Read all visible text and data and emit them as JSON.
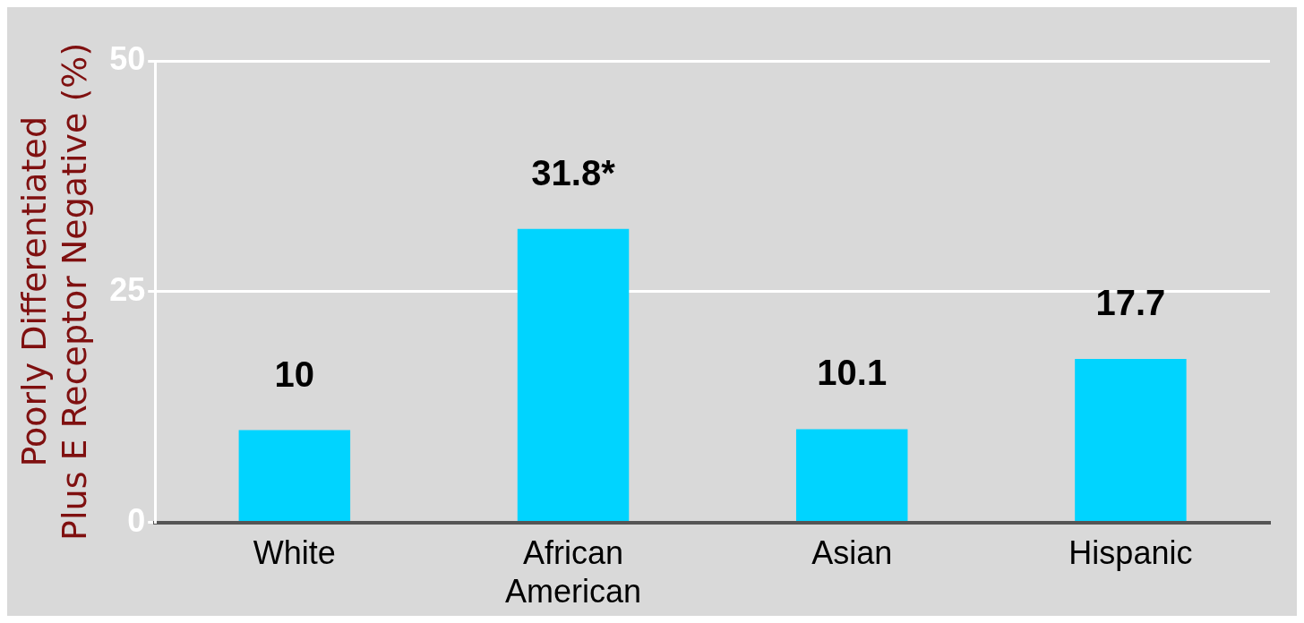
{
  "chart_data": {
    "type": "bar",
    "ylabel": "Poorly Differentiated Plus E Receptor Negative (%)",
    "categories": [
      "White",
      "African American",
      "Asian",
      "Hispanic"
    ],
    "values": [
      10,
      31.8,
      10.1,
      17.7
    ],
    "value_labels": [
      "10",
      "31.8*",
      "10.1",
      "17.7"
    ],
    "color": "#00d4ff",
    "ylim": [
      0,
      50
    ],
    "yticks": [
      0,
      25,
      50
    ],
    "grid": "y",
    "legend": false
  }
}
